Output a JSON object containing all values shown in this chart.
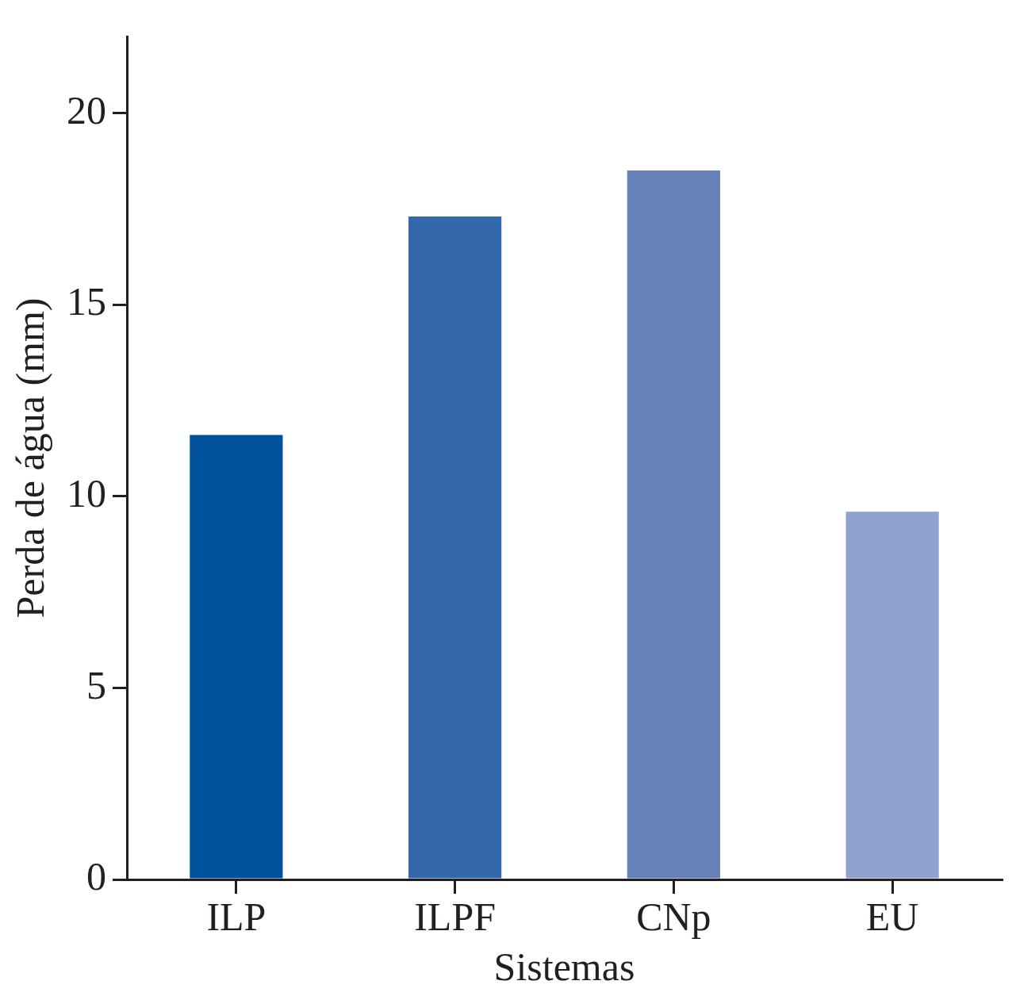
{
  "chart_data": {
    "type": "bar",
    "xlabel": "Sistemas",
    "ylabel": "Perda de água (mm)",
    "categories": [
      "ILP",
      "ILPF",
      "CNp",
      "EU"
    ],
    "values": [
      11.6,
      17.3,
      18.5,
      9.6
    ],
    "colors": [
      "#00529b",
      "#3368ad",
      "#6680b8",
      "#8fa3ce"
    ],
    "ylim": [
      0,
      22
    ],
    "yticks": [
      0,
      5,
      10,
      15,
      20
    ],
    "grid": false,
    "legend": false
  }
}
